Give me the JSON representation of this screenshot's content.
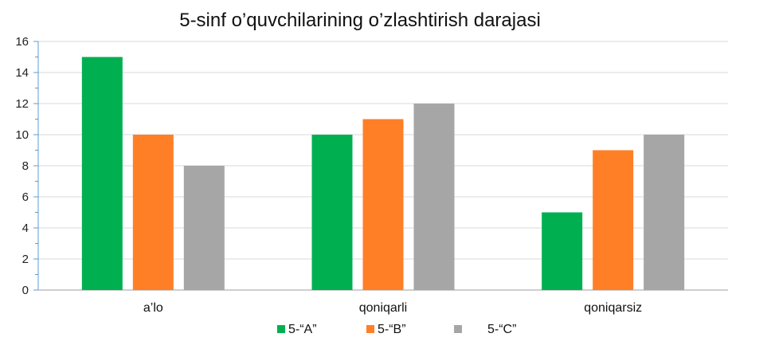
{
  "chart_data": {
    "type": "bar",
    "title": "5-sinf o’quvchilarining o’zlashtirish darajasi",
    "categories": [
      "a’lo",
      "qoniqarli",
      "qoniqarsiz"
    ],
    "series": [
      {
        "name": "5-“A”",
        "values": [
          15,
          10,
          5
        ],
        "color": "#00b050"
      },
      {
        "name": "5-“B”",
        "values": [
          10,
          11,
          9
        ],
        "color": "#ff7f27"
      },
      {
        "name": "5-“C”",
        "values": [
          8,
          12,
          10
        ],
        "color": "#a6a6a6"
      }
    ],
    "xlabel": "",
    "ylabel": "",
    "ylim": [
      0,
      16
    ],
    "y_ticks": [
      0,
      2,
      4,
      6,
      8,
      10,
      12,
      14,
      16
    ],
    "grid": true,
    "legend_position": "bottom"
  }
}
